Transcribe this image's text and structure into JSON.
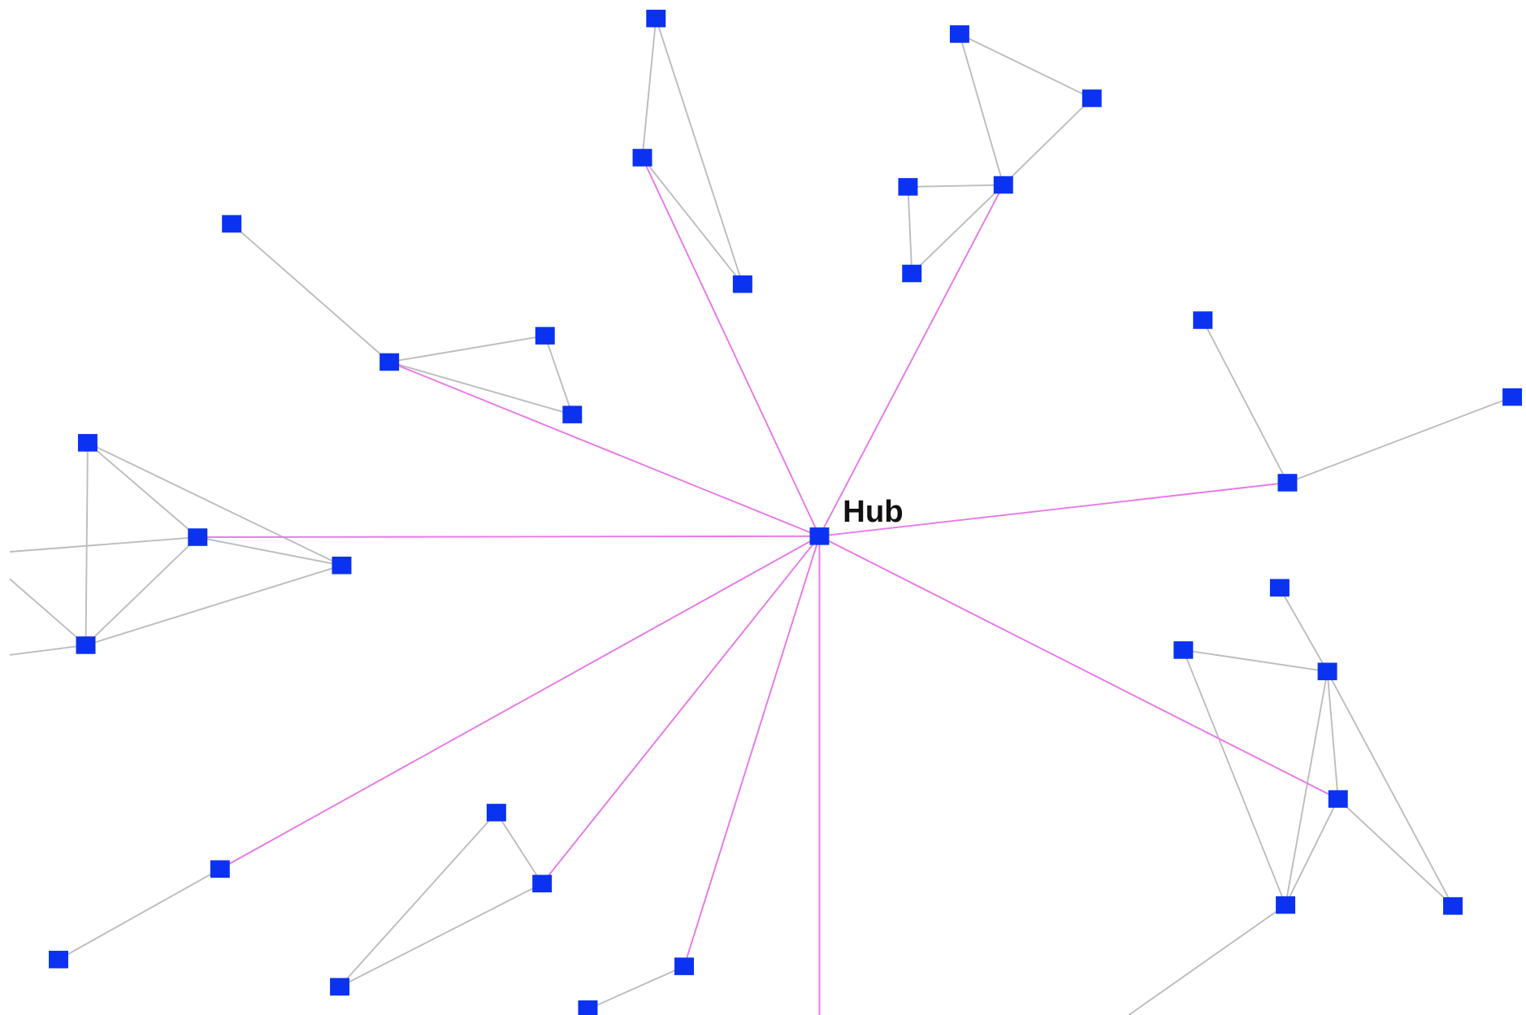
{
  "hub": {
    "label": "Hub"
  }
}
